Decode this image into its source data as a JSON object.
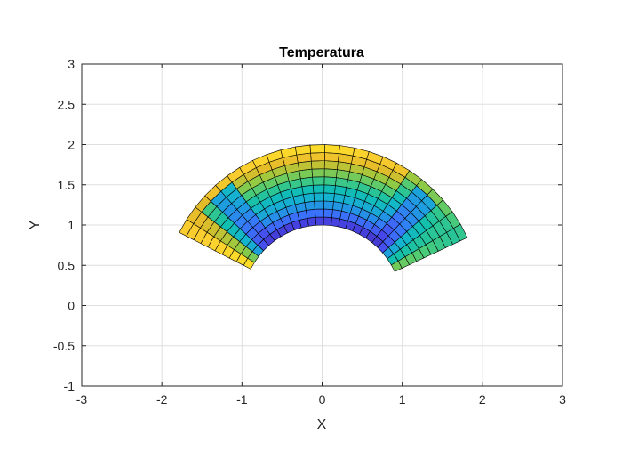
{
  "chart_data": {
    "type": "heatmap",
    "title": "Temperatura",
    "xlabel": "X",
    "ylabel": "Y",
    "xlim": [
      -3,
      3
    ],
    "ylim": [
      -1,
      3
    ],
    "xticks": [
      -3,
      -2,
      -1,
      0,
      1,
      2,
      3
    ],
    "yticks": [
      -1,
      -0.5,
      0,
      0.5,
      1,
      1.5,
      2,
      2.5,
      3
    ],
    "xtick_labels": [
      "-3",
      "-2",
      "-1",
      "0",
      "1",
      "2",
      "3"
    ],
    "ytick_labels": [
      "-1",
      "-0.5",
      "0",
      "0.5",
      "1",
      "1.5",
      "2",
      "2.5",
      "3"
    ],
    "grid": true,
    "colormap": "parula",
    "mesh": {
      "inner_radius": 1,
      "outer_radius": 2,
      "theta_start_deg": 25,
      "theta_end_deg": 153,
      "radial_divisions": 10,
      "angular_divisions": 24
    },
    "edge_color": "#000000"
  }
}
